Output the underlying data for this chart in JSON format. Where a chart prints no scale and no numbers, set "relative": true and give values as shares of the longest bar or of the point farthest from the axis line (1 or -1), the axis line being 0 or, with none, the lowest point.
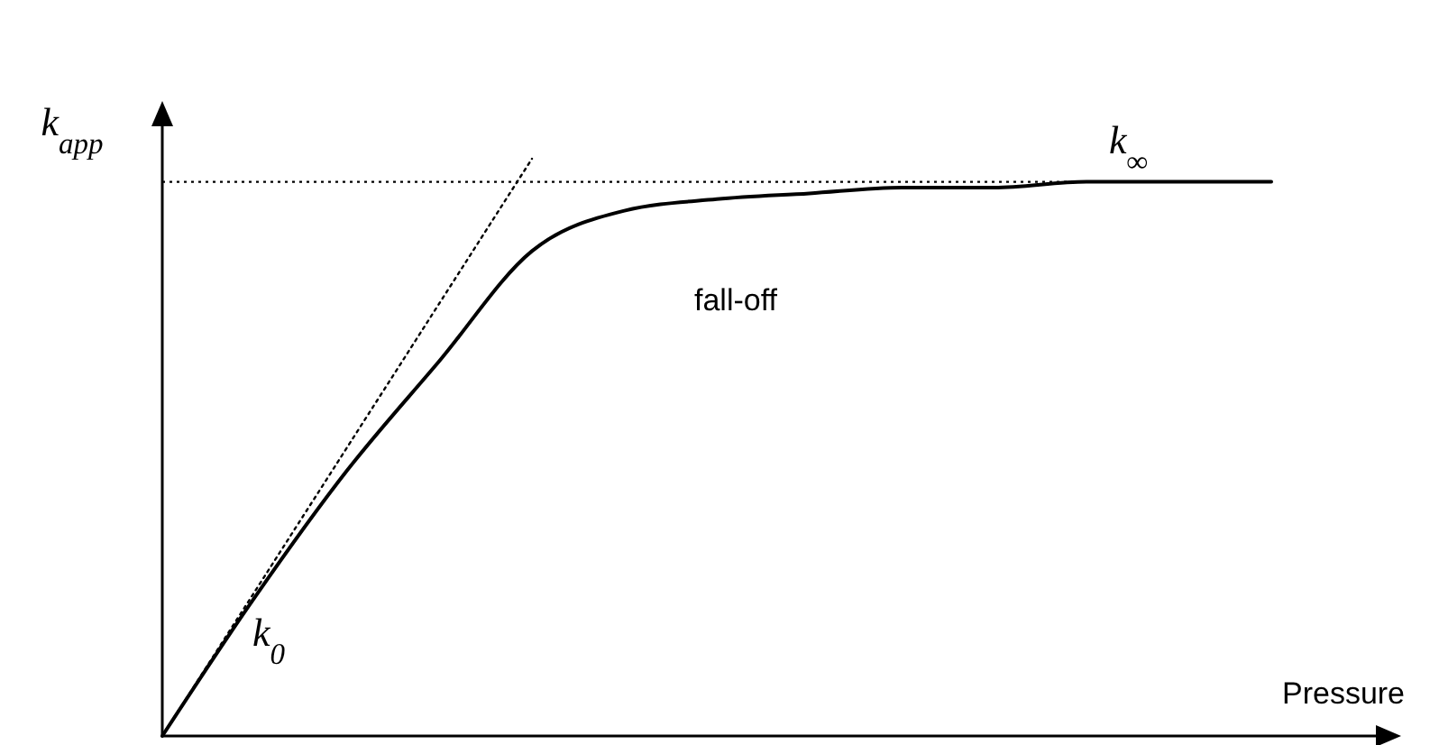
{
  "chart_data": {
    "type": "line",
    "relative": true,
    "xlabel": "Pressure",
    "ylabel": "k$_{app}$",
    "categories": [
      null,
      null,
      null,
      null,
      null,
      null,
      null,
      null,
      null,
      null,
      null,
      null,
      null
    ],
    "series": [
      {
        "color": "#000000",
        "line_style": "solid",
        "values": [
          0,
          0.24,
          0.46,
          0.65,
          0.84,
          0.91,
          0.93,
          0.94,
          0.95,
          0.95,
          0.96,
          0.96,
          0.96
        ]
      },
      {
        "color": "#000000",
        "line_style": "dotted",
        "values": [
          0,
          0.25,
          0.5,
          0.75,
          1,
          null,
          null,
          null,
          null,
          null,
          null,
          null,
          null
        ]
      }
    ],
    "ref_lines": [
      {
        "axis": "y",
        "value": 0.96,
        "line_style": "dotted",
        "color": "#000000"
      }
    ],
    "annotations": [
      "k$_{0}$",
      "fall-off",
      "k$_{∞}$"
    ],
    "marker": "none"
  }
}
